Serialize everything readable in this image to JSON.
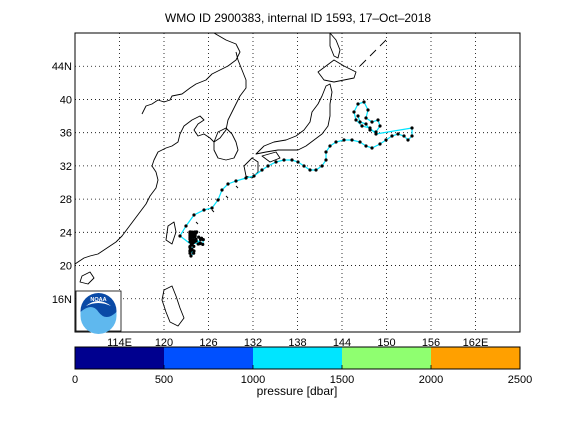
{
  "title": "WMO ID 2900383, internal ID 1593, 17–Oct–2018",
  "map": {
    "lon_ticks": [
      "114E",
      "120",
      "126",
      "132",
      "138",
      "144",
      "150",
      "156",
      "162E"
    ],
    "lat_ticks": [
      "16N",
      "20",
      "24",
      "28",
      "32",
      "36",
      "40",
      "44N"
    ],
    "lon_range": [
      108,
      168
    ],
    "lat_range": [
      12,
      48
    ],
    "grid": "dotted"
  },
  "colorbar": {
    "label": "pressure [dbar]",
    "ticks": [
      "0",
      "500",
      "1000",
      "1500",
      "2000",
      "2500"
    ],
    "colors": [
      "#00008f",
      "#0050ff",
      "#00e5ff",
      "#8fff70",
      "#ffa000"
    ]
  },
  "logo": {
    "text": "NOAA",
    "icon": "noaa-logo-icon"
  },
  "float_track": {
    "marker_color": "#000000",
    "line_color": "#00e5ff"
  }
}
